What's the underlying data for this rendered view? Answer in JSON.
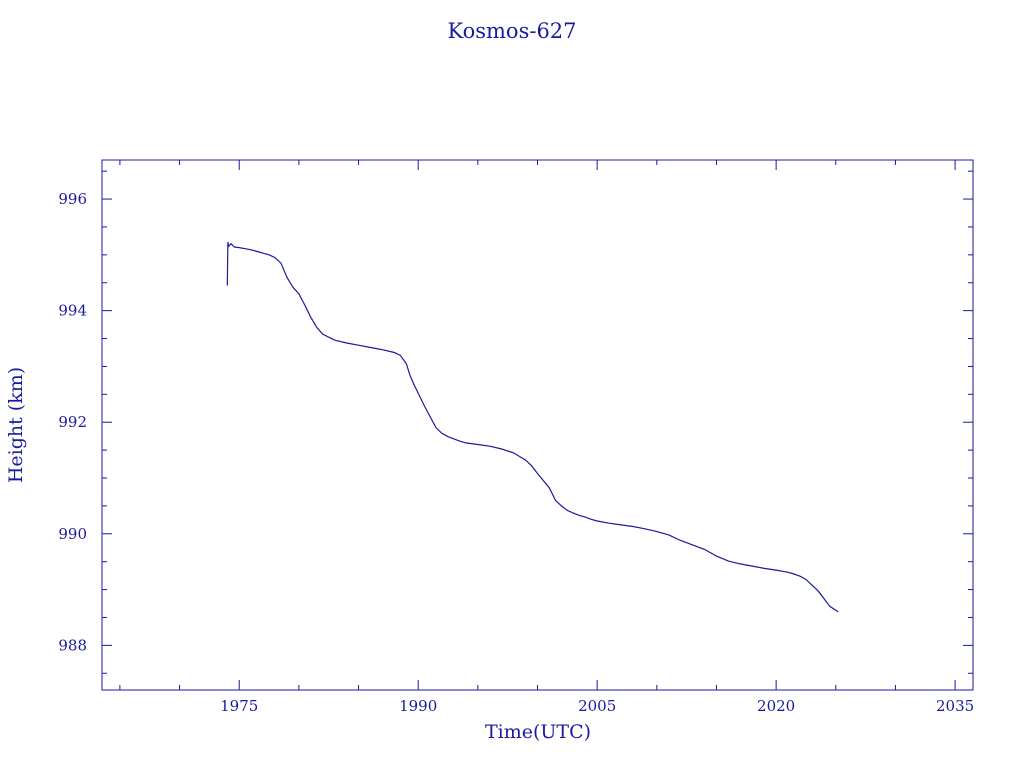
{
  "chart_data": {
    "type": "line",
    "title": "Kosmos-627",
    "xlabel": "Time(UTC)",
    "ylabel": "Height (km)",
    "xlim": [
      1963.5,
      2036.5
    ],
    "ylim": [
      987.2,
      996.7
    ],
    "x_ticks": [
      1975,
      1990,
      2005,
      2020,
      2035
    ],
    "x_tick_labels": [
      "1975",
      "1990",
      "2005",
      "2020",
      "2035"
    ],
    "y_ticks": [
      988,
      990,
      992,
      994,
      996
    ],
    "y_tick_labels": [
      "988",
      "990",
      "992",
      "994",
      "996"
    ],
    "grid": false,
    "line_color": "#1a1a9e",
    "series": [
      {
        "x": [
          1974.0,
          1974.05,
          1974.1,
          1974.3,
          1974.6,
          1975.0,
          1975.5,
          1976.0,
          1976.5,
          1977.0,
          1977.5,
          1978.0,
          1978.5,
          1979.0,
          1979.5,
          1980.0,
          1980.5,
          1981.0,
          1981.5,
          1982.0,
          1983.0,
          1984.0,
          1985.0,
          1986.0,
          1987.0,
          1988.0,
          1988.5,
          1989.0,
          1989.3,
          1989.6,
          1990.0,
          1990.5,
          1991.0,
          1991.5,
          1992.0,
          1992.5,
          1993.0,
          1993.5,
          1994.0,
          1995.0,
          1996.0,
          1997.0,
          1998.0,
          1999.0,
          1999.5,
          2000.0,
          2000.5,
          2001.0,
          2001.5,
          2002.0,
          2002.5,
          2003.0,
          2003.5,
          2004.0,
          2004.5,
          2005.0,
          2006.0,
          2007.0,
          2008.0,
          2009.0,
          2010.0,
          2011.0,
          2012.0,
          2013.0,
          2014.0,
          2015.0,
          2016.0,
          2017.0,
          2018.0,
          2019.0,
          2020.0,
          2020.5,
          2021.0,
          2021.5,
          2022.0,
          2022.5,
          2023.0,
          2023.5,
          2024.0,
          2024.5,
          2025.2
        ],
        "y": [
          994.45,
          995.23,
          995.15,
          995.2,
          995.14,
          995.13,
          995.11,
          995.09,
          995.06,
          995.03,
          995.0,
          994.95,
          994.85,
          994.6,
          994.42,
          994.3,
          994.1,
          993.88,
          993.7,
          993.58,
          993.47,
          993.42,
          993.38,
          993.34,
          993.3,
          993.25,
          993.2,
          993.05,
          992.85,
          992.7,
          992.52,
          992.3,
          992.1,
          991.9,
          991.8,
          991.74,
          991.7,
          991.66,
          991.63,
          991.6,
          991.57,
          991.52,
          991.45,
          991.32,
          991.22,
          991.08,
          990.95,
          990.82,
          990.6,
          990.5,
          990.42,
          990.37,
          990.33,
          990.3,
          990.26,
          990.23,
          990.19,
          990.16,
          990.13,
          990.09,
          990.04,
          989.98,
          989.88,
          989.8,
          989.72,
          989.6,
          989.51,
          989.46,
          989.42,
          989.38,
          989.35,
          989.33,
          989.31,
          989.28,
          989.24,
          989.18,
          989.08,
          988.98,
          988.84,
          988.7,
          988.6
        ]
      }
    ]
  }
}
